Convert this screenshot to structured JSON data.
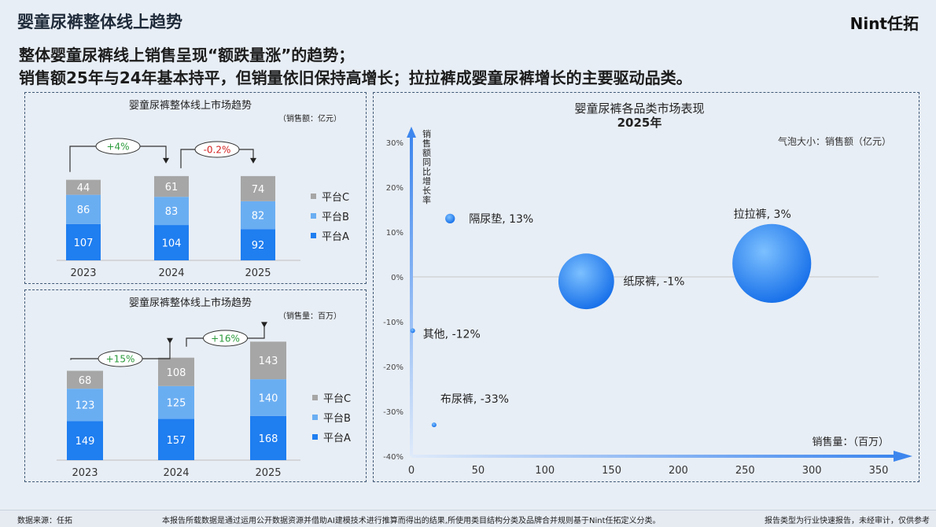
{
  "header": {
    "title": "婴童尿裤整体线上趋势",
    "logo": "Nint任拓"
  },
  "headline": {
    "line1": "整体婴童尿裤线上销售呈现“额跌量涨”的趋势；",
    "line2": "销售额25年与24年基本持平，但销量依旧保持高增长；拉拉裤成婴童尿裤增长的主要驱动品类。"
  },
  "colors": {
    "platform_c": "#a6a6a6",
    "platform_b": "#6aaef2",
    "platform_a": "#1f7ef0",
    "pos": "#2a9a3a",
    "neg": "#d32020",
    "axis": "#3d86ee",
    "bubble": "#2f8ef5"
  },
  "chart_data": [
    {
      "type": "bar",
      "stacked": true,
      "title": "婴童尿裤整体线上市场趋势",
      "unit": "（销售额：亿元）",
      "categories": [
        "2023",
        "2024",
        "2025"
      ],
      "series": [
        {
          "name": "平台A",
          "values": [
            107,
            104,
            92
          ]
        },
        {
          "name": "平台B",
          "values": [
            86,
            83,
            82
          ]
        },
        {
          "name": "平台C",
          "values": [
            44,
            61,
            74
          ]
        }
      ],
      "legend": [
        "平台C",
        "平台B",
        "平台A"
      ],
      "legend_position": "right",
      "growth": [
        {
          "label": "+4%",
          "positive": true
        },
        {
          "label": "-0.2%",
          "positive": false
        }
      ]
    },
    {
      "type": "bar",
      "stacked": true,
      "title": "婴童尿裤整体线上市场趋势",
      "unit": "（销售量：百万）",
      "categories": [
        "2023",
        "2024",
        "2025"
      ],
      "series": [
        {
          "name": "平台A",
          "values": [
            149,
            157,
            168
          ]
        },
        {
          "name": "平台B",
          "values": [
            123,
            125,
            140
          ]
        },
        {
          "name": "平台C",
          "values": [
            68,
            108,
            143
          ]
        }
      ],
      "legend": [
        "平台C",
        "平台B",
        "平台A"
      ],
      "legend_position": "right",
      "growth": [
        {
          "label": "+15%",
          "positive": true
        },
        {
          "label": "+16%",
          "positive": true
        }
      ]
    },
    {
      "type": "scatter",
      "bubble": true,
      "title": "婴童尿裤各品类市场表现",
      "subtitle": "2025年",
      "size_note": "气泡大小：销售额（亿元）",
      "xlabel": "销售量：（百万）",
      "ylabel": "销售额同比增长率",
      "x_ticks": [
        "0",
        "50",
        "100",
        "150",
        "200",
        "250",
        "300",
        "350"
      ],
      "y_ticks": [
        "30%",
        "20%",
        "10%",
        "0%",
        "-10%",
        "-20%",
        "-30%",
        "-40%"
      ],
      "xlim": [
        0,
        350
      ],
      "ylim": [
        -40,
        30
      ],
      "points": [
        {
          "label": "隔尿垫, 13%",
          "x": 29,
          "y": 13,
          "size": 1.2
        },
        {
          "label": "纸尿裤, -1%",
          "x": 131,
          "y": -1,
          "size": 40
        },
        {
          "label": "拉拉裤, 3%",
          "x": 270,
          "y": 3,
          "size": 80
        },
        {
          "label": "其他, -12%",
          "x": 1,
          "y": -12,
          "size": 0.1
        },
        {
          "label": "布尿裤, -33%",
          "x": 17,
          "y": -33,
          "size": 0.1
        }
      ]
    }
  ],
  "footer": {
    "source": "数据来源：任拓",
    "disclaimer": "本报告所载数据是通过运用公开数据资源并借助AI建模技术进行推算而得出的结果,所使用类目结构分类及品牌合并规则基于Nint任拓定义分类。",
    "note": "报告类型为行业快速报告，未经审计，仅供参考"
  }
}
